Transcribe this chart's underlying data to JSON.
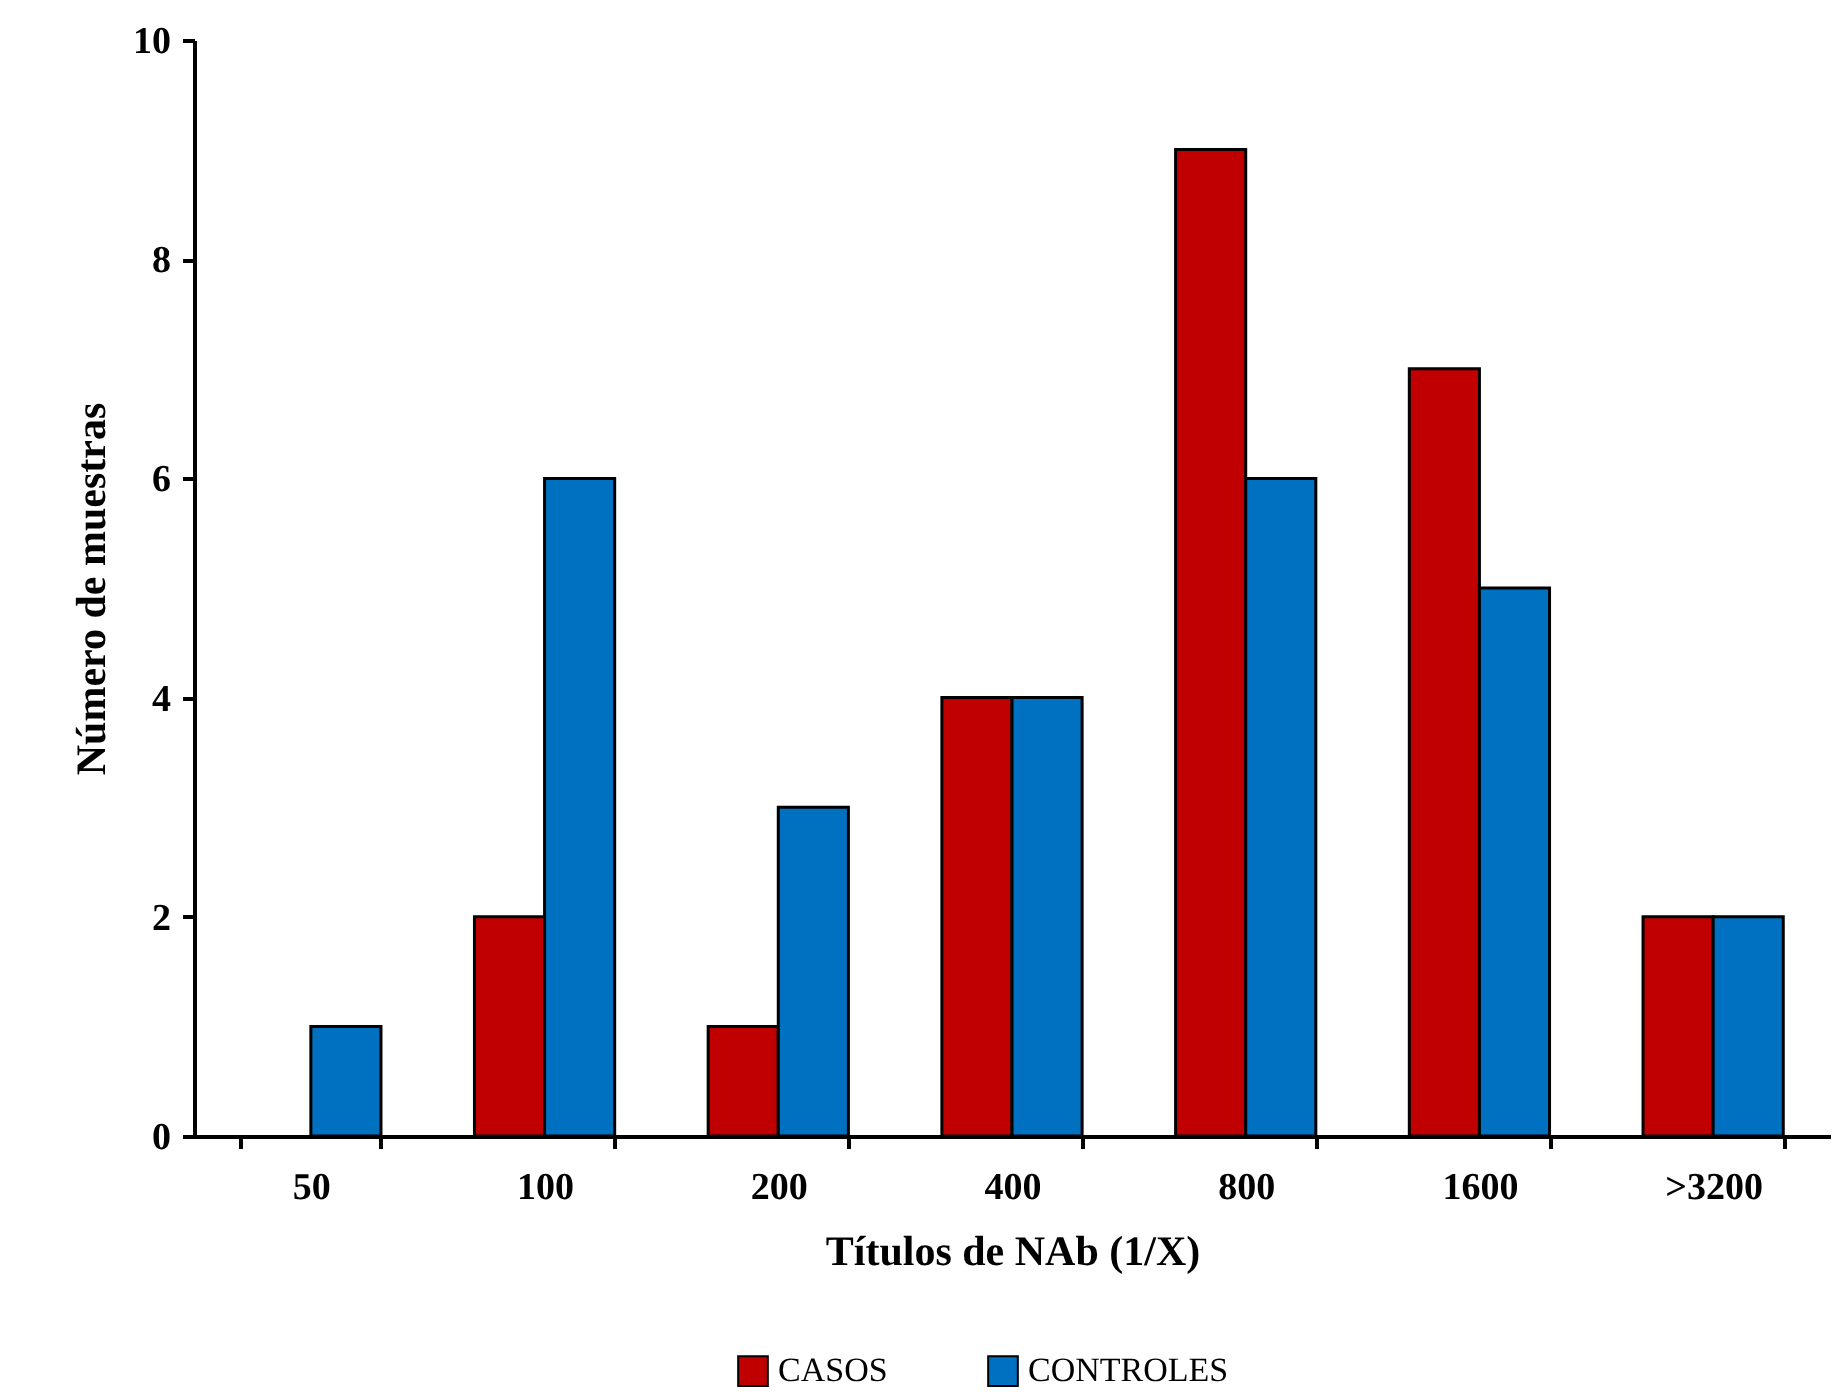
{
  "chart_data": {
    "type": "bar",
    "xlabel": "Títulos de NAb (1/X)",
    "ylabel": "Número de muestras",
    "categories": [
      "50",
      "100",
      "200",
      "400",
      "800",
      "1600",
      ">3200"
    ],
    "series": [
      {
        "name": "CASOS",
        "color": "#c00000",
        "values": [
          null,
          2,
          1,
          4,
          9,
          7,
          2
        ]
      },
      {
        "name": "CONTROLES",
        "color": "#0070c0",
        "values": [
          1,
          6,
          3,
          4,
          6,
          5,
          2
        ]
      }
    ],
    "ylim": [
      0,
      10
    ],
    "yticks": [
      0,
      2,
      4,
      6,
      8,
      10
    ],
    "grid": false,
    "legend": "bottom"
  }
}
